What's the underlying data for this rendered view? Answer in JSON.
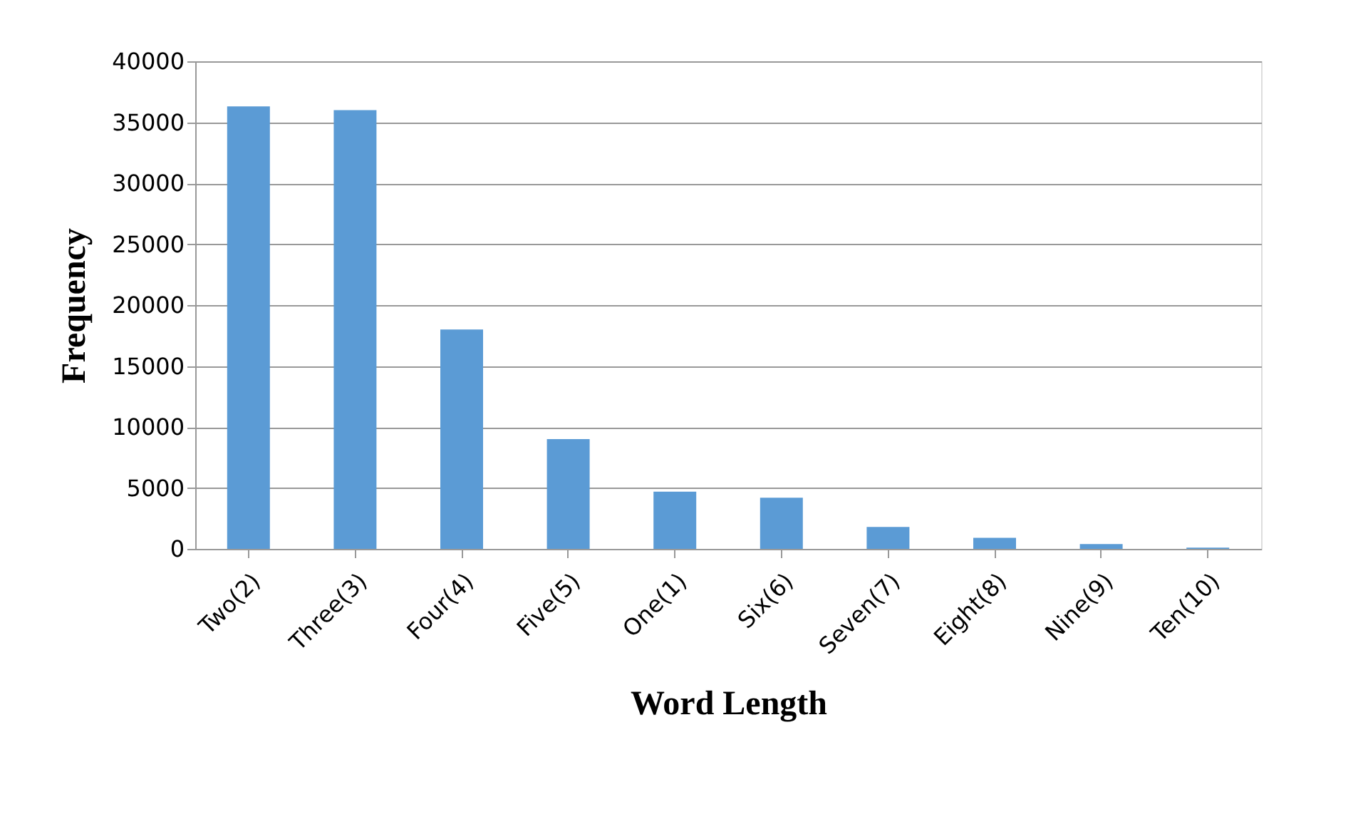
{
  "chart_data": {
    "type": "bar",
    "xlabel": "Word Length",
    "ylabel": "Frequency",
    "categories": [
      "Two(2)",
      "Three(3)",
      "Four(4)",
      "Five(5)",
      "One(1)",
      "Six(6)",
      "Seven(7)",
      "Eight(8)",
      "Nine(9)",
      "Ten(10)"
    ],
    "values": [
      36300,
      36000,
      18000,
      9000,
      4700,
      4200,
      1800,
      900,
      400,
      100
    ],
    "color": "#5b9bd5",
    "ylim": [
      0,
      40000
    ],
    "yticks": [
      0,
      5000,
      10000,
      15000,
      20000,
      25000,
      30000,
      35000,
      40000
    ],
    "grid": "y",
    "legend": false
  }
}
